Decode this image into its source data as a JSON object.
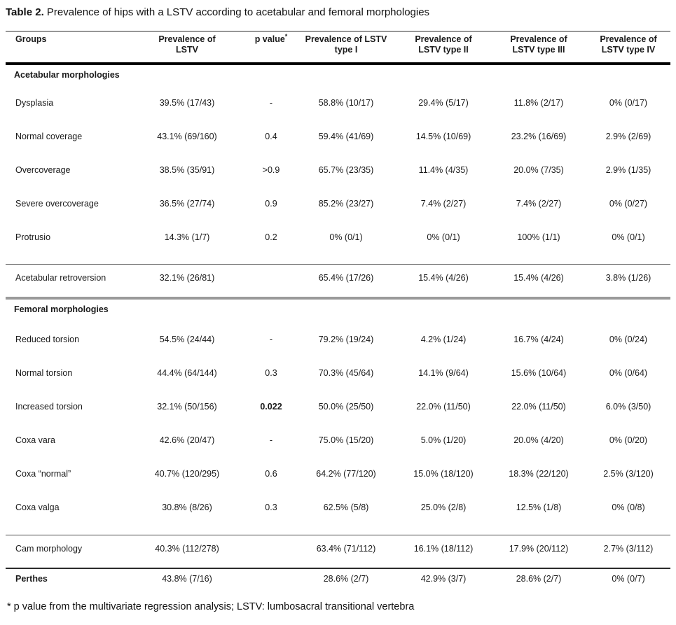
{
  "page": {
    "title_prefix": "Table 2.",
    "title_rest": " Prevalence of hips with a LSTV according to acetabular and femoral morphologies"
  },
  "table": {
    "header": {
      "groups": "Groups",
      "prev_l1": "Prevalence of",
      "prev_l2": "LSTV",
      "p_label": "p value",
      "p_sup": "*",
      "t1_l1": "Prevalence of LSTV",
      "t1_l2": "type I",
      "t2_l1": "Prevalence of",
      "t2_l2": "LSTV type II",
      "t3_l1": "Prevalence of",
      "t3_l2": "LSTV type III",
      "t4_l1": "Prevalence of",
      "t4_l2": "LSTV type IV"
    },
    "sections": {
      "acetabular": "Acetabular morphologies",
      "femoral": "Femoral morphologies"
    },
    "rows": [
      {
        "group": "Dysplasia",
        "prevalence": "39.5% (17/43)",
        "p": "-",
        "type1": "58.8% (10/17)",
        "type2": "29.4% (5/17)",
        "type3": "11.8% (2/17)",
        "type4": "0% (0/17)"
      },
      {
        "group": "Normal coverage",
        "prevalence": "43.1% (69/160)",
        "p": "0.4",
        "type1": "59.4% (41/69)",
        "type2": "14.5% (10/69)",
        "type3": "23.2% (16/69)",
        "type4": "2.9% (2/69)"
      },
      {
        "group": "Overcoverage",
        "prevalence": "38.5% (35/91)",
        "p": ">0.9",
        "type1": "65.7% (23/35)",
        "type2": "11.4% (4/35)",
        "type3": "20.0% (7/35)",
        "type4": "2.9% (1/35)"
      },
      {
        "group": "Severe overcoverage",
        "prevalence": "36.5% (27/74)",
        "p": "0.9",
        "type1": "85.2% (23/27)",
        "type2": "7.4% (2/27)",
        "type3": "7.4% (2/27)",
        "type4": "0% (0/27)"
      },
      {
        "group": "Protrusio",
        "prevalence": "14.3% (1/7)",
        "p": "0.2",
        "type1": "0% (0/1)",
        "type2": "0% (0/1)",
        "type3": "100% (1/1)",
        "type4": "0% (0/1)"
      },
      {
        "group": "Acetabular retroversion",
        "prevalence": "32.1% (26/81)",
        "p": "",
        "type1": "65.4% (17/26)",
        "type2": "15.4% (4/26)",
        "type3": "15.4% (4/26)",
        "type4": "3.8% (1/26)"
      },
      {
        "group": "Reduced torsion",
        "prevalence": "54.5% (24/44)",
        "p": "-",
        "type1": "79.2% (19/24)",
        "type2": "4.2% (1/24)",
        "type3": "16.7% (4/24)",
        "type4": "0% (0/24)"
      },
      {
        "group": "Normal torsion",
        "prevalence": "44.4% (64/144)",
        "p": "0.3",
        "type1": "70.3% (45/64)",
        "type2": "14.1% (9/64)",
        "type3": "15.6% (10/64)",
        "type4": "0% (0/64)"
      },
      {
        "group": "Increased torsion",
        "prevalence": "32.1% (50/156)",
        "p": "0.022",
        "type1": "50.0% (25/50)",
        "type2": "22.0% (11/50)",
        "type3": "22.0% (11/50)",
        "type4": "6.0% (3/50)"
      },
      {
        "group": "Coxa vara",
        "prevalence": "42.6% (20/47)",
        "p": "-",
        "type1": "75.0% (15/20)",
        "type2": "5.0% (1/20)",
        "type3": "20.0% (4/20)",
        "type4": "0% (0/20)"
      },
      {
        "group": "Coxa “normal”",
        "prevalence": "40.7% (120/295)",
        "p": "0.6",
        "type1": "64.2% (77/120)",
        "type2": "15.0% (18/120)",
        "type3": "18.3% (22/120)",
        "type4": "2.5% (3/120)"
      },
      {
        "group": "Coxa valga",
        "prevalence": "30.8% (8/26)",
        "p": "0.3",
        "type1": "62.5% (5/8)",
        "type2": "25.0% (2/8)",
        "type3": "12.5% (1/8)",
        "type4": "0% (0/8)"
      },
      {
        "group": "Cam morphology",
        "prevalence": "40.3% (112/278)",
        "p": "",
        "type1": "63.4% (71/112)",
        "type2": "16.1% (18/112)",
        "type3": "17.9% (20/112)",
        "type4": "2.7% (3/112)"
      },
      {
        "group": "Perthes",
        "prevalence": "43.8% (7/16)",
        "p": "",
        "type1": "28.6% (2/7)",
        "type2": "42.9% (3/7)",
        "type3": "28.6% (2/7)",
        "type4": "0% (0/7)"
      }
    ],
    "footnote": "* p value from the multivariate regression analysis; LSTV: lumbosacral transitional vertebra"
  }
}
